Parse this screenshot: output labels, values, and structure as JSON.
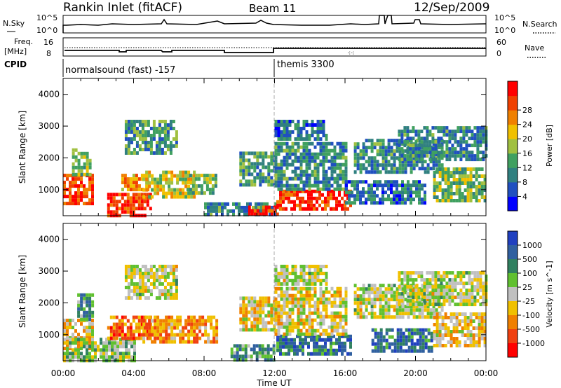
{
  "header": {
    "station": "Rankin Inlet (fitACF)",
    "beam": "Beam 11",
    "date": "12/Sep/2009"
  },
  "noise_panel": {
    "left_label": "N.Sky",
    "right_label": "N.Search",
    "left_ticks": [
      "10^5",
      "10^0"
    ],
    "right_ticks": [
      "10^5",
      "10^0"
    ]
  },
  "freq_panel": {
    "left_label_1": "Freq.",
    "left_label_2": "[MHz]",
    "right_label": "Nave",
    "left_ticks": [
      "16",
      "8"
    ],
    "right_ticks": [
      "60",
      "0"
    ]
  },
  "cpid_panel": {
    "label": "CPID",
    "programs": [
      "normalsound (fast) -157",
      "themis 3300"
    ]
  },
  "colors": {
    "power": [
      "#0000ff",
      "#2050c0",
      "#308080",
      "#40a060",
      "#a0c040",
      "#f0c000",
      "#f08000",
      "#f04000",
      "#ff0000"
    ],
    "velocity": [
      "#2040c0",
      "#3060a0",
      "#308060",
      "#60c030",
      "#c0c0c0",
      "#f0c000",
      "#f08000",
      "#f04010",
      "#ff0000"
    ]
  },
  "chart_data": [
    {
      "type": "heatmap",
      "quantity": "Power",
      "ylabel": "Slant Range [km]",
      "xlabel": "Time UT",
      "x_ticks": [
        "00:00",
        "04:00",
        "08:00",
        "12:00",
        "16:00",
        "20:00",
        "00:00"
      ],
      "y_ticks": [
        1000,
        2000,
        3000,
        4000
      ],
      "ylim": [
        180,
        4500
      ],
      "colorbar": {
        "label": "Power [dB]",
        "ticks": [
          4,
          8,
          12,
          16,
          20,
          24,
          28
        ]
      },
      "regions": [
        {
          "t0": 0.0,
          "t1": 1.6,
          "r0": 600,
          "r1": 1500,
          "level": 0.85
        },
        {
          "t0": 0.5,
          "t1": 1.6,
          "r0": 1500,
          "r1": 2300,
          "level": 0.45
        },
        {
          "t0": 2.5,
          "t1": 5.0,
          "r0": 200,
          "r1": 900,
          "level": 0.9
        },
        {
          "t0": 3.3,
          "t1": 4.8,
          "r0": 1000,
          "r1": 1500,
          "level": 0.7
        },
        {
          "t0": 4.5,
          "t1": 7.5,
          "r0": 800,
          "r1": 1600,
          "level": 0.55
        },
        {
          "t0": 3.5,
          "t1": 6.5,
          "r0": 2200,
          "r1": 3200,
          "level": 0.35
        },
        {
          "t0": 7.0,
          "t1": 8.7,
          "r0": 900,
          "r1": 1500,
          "level": 0.45
        },
        {
          "t0": 8.0,
          "t1": 12.0,
          "r0": 200,
          "r1": 600,
          "level": 0.3
        },
        {
          "t0": 10.5,
          "t1": 12.2,
          "r0": 200,
          "r1": 500,
          "level": 0.9
        },
        {
          "t0": 10.0,
          "t1": 12.0,
          "r0": 1200,
          "r1": 2200,
          "level": 0.35
        },
        {
          "t0": 12.1,
          "t1": 16.3,
          "r0": 400,
          "r1": 1000,
          "level": 0.88
        },
        {
          "t0": 12.0,
          "t1": 16.0,
          "r0": 1000,
          "r1": 2500,
          "level": 0.3
        },
        {
          "t0": 12.0,
          "t1": 15.0,
          "r0": 2600,
          "r1": 3200,
          "level": 0.25
        },
        {
          "t0": 16.0,
          "t1": 20.5,
          "r0": 600,
          "r1": 1300,
          "level": 0.25
        },
        {
          "t0": 16.5,
          "t1": 21.5,
          "r0": 1600,
          "r1": 2600,
          "level": 0.3
        },
        {
          "t0": 19.0,
          "t1": 24.0,
          "r0": 2000,
          "r1": 3000,
          "level": 0.3
        },
        {
          "t0": 21.0,
          "t1": 24.0,
          "r0": 700,
          "r1": 1700,
          "level": 0.45
        }
      ]
    },
    {
      "type": "heatmap",
      "quantity": "Velocity",
      "ylabel": "Slant Range [km]",
      "xlabel": "Time UT",
      "x_ticks": [
        "00:00",
        "04:00",
        "08:00",
        "12:00",
        "16:00",
        "20:00",
        "00:00"
      ],
      "y_ticks": [
        1000,
        2000,
        3000,
        4000
      ],
      "ylim": [
        180,
        4500
      ],
      "colorbar": {
        "label": "Velocity [m s^-1]",
        "ticks": [
          1000,
          500,
          100,
          25,
          -25,
          -100,
          -500,
          -1000
        ]
      },
      "regions": [
        {
          "t0": 0.0,
          "t1": 1.6,
          "r0": 600,
          "r1": 1500,
          "level": 0.6
        },
        {
          "t0": 0.8,
          "t1": 1.6,
          "r0": 1500,
          "r1": 2300,
          "level": 0.3
        },
        {
          "t0": 0.0,
          "t1": 4.0,
          "r0": 200,
          "r1": 900,
          "level": 0.45
        },
        {
          "t0": 2.5,
          "t1": 5.0,
          "r0": 900,
          "r1": 1600,
          "level": 0.75
        },
        {
          "t0": 4.5,
          "t1": 8.7,
          "r0": 800,
          "r1": 1600,
          "level": 0.7
        },
        {
          "t0": 3.5,
          "t1": 6.5,
          "r0": 2200,
          "r1": 3200,
          "level": 0.5
        },
        {
          "t0": 9.5,
          "t1": 12.0,
          "r0": 200,
          "r1": 700,
          "level": 0.3
        },
        {
          "t0": 10.0,
          "t1": 12.0,
          "r0": 1200,
          "r1": 2200,
          "level": 0.55
        },
        {
          "t0": 12.1,
          "t1": 16.3,
          "r0": 400,
          "r1": 1000,
          "level": 0.2
        },
        {
          "t0": 12.0,
          "t1": 16.0,
          "r0": 1000,
          "r1": 2500,
          "level": 0.55
        },
        {
          "t0": 12.0,
          "t1": 15.0,
          "r0": 2600,
          "r1": 3200,
          "level": 0.5
        },
        {
          "t0": 16.5,
          "t1": 21.5,
          "r0": 1600,
          "r1": 2600,
          "level": 0.5
        },
        {
          "t0": 17.5,
          "t1": 21.0,
          "r0": 500,
          "r1": 1200,
          "level": 0.2
        },
        {
          "t0": 19.0,
          "t1": 24.0,
          "r0": 2000,
          "r1": 3000,
          "level": 0.5
        },
        {
          "t0": 21.0,
          "t1": 24.0,
          "r0": 700,
          "r1": 1700,
          "level": 0.6
        }
      ]
    }
  ]
}
